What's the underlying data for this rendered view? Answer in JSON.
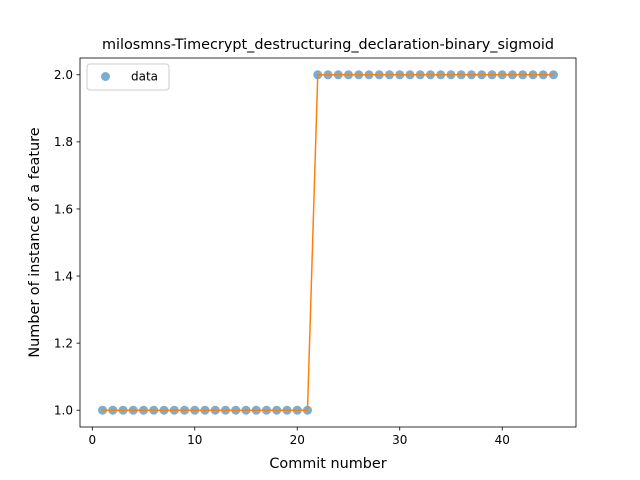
{
  "chart_data": {
    "type": "scatter",
    "title": "milosmns-Timecrypt_destructuring_declaration-binary_sigmoid",
    "xlabel": "Commit number",
    "ylabel": "Number of instance of a feature",
    "xlim": [
      -1.2,
      47.2
    ],
    "ylim": [
      0.95,
      2.05
    ],
    "xticks": [
      0,
      10,
      20,
      30,
      40
    ],
    "yticks": [
      1.0,
      1.2,
      1.4,
      1.6,
      1.8,
      2.0
    ],
    "xtick_labels": [
      "0",
      "10",
      "20",
      "30",
      "40"
    ],
    "ytick_labels": [
      "1.0",
      "1.2",
      "1.4",
      "1.6",
      "1.8",
      "2.0"
    ],
    "legend": {
      "position": "top-left",
      "entries": [
        "data"
      ]
    },
    "grid": false,
    "series": [
      {
        "name": "data",
        "kind": "markers",
        "color": "#1f77b4",
        "x": [
          1,
          2,
          3,
          4,
          5,
          6,
          7,
          8,
          9,
          10,
          11,
          12,
          13,
          14,
          15,
          16,
          17,
          18,
          19,
          20,
          21,
          22,
          23,
          24,
          25,
          26,
          27,
          28,
          29,
          30,
          31,
          32,
          33,
          34,
          35,
          36,
          37,
          38,
          39,
          40,
          41,
          42,
          43,
          44,
          45
        ],
        "y": [
          1,
          1,
          1,
          1,
          1,
          1,
          1,
          1,
          1,
          1,
          1,
          1,
          1,
          1,
          1,
          1,
          1,
          1,
          1,
          1,
          1,
          2,
          2,
          2,
          2,
          2,
          2,
          2,
          2,
          2,
          2,
          2,
          2,
          2,
          2,
          2,
          2,
          2,
          2,
          2,
          2,
          2,
          2,
          2,
          2
        ]
      },
      {
        "kind": "line",
        "color": "#ff7f0e",
        "x": [
          1,
          21,
          22,
          45
        ],
        "y": [
          1,
          1,
          2,
          2
        ]
      }
    ]
  }
}
